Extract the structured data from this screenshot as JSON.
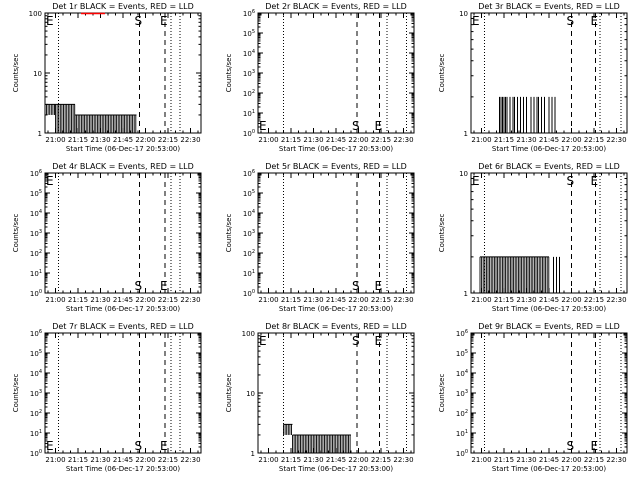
{
  "figure": {
    "xlabel": "Start Time (06-Dec-17 20:53:00)",
    "ylabel": "Counts/sec",
    "x_ticks": [
      "21:00",
      "21:15",
      "21:30",
      "21:45",
      "22:00",
      "22:15",
      "22:30"
    ],
    "colors": {
      "events": "#000000",
      "lld": "#ff0000"
    }
  },
  "chart_data": [
    {
      "type": "line",
      "title": "Det 1r BLACK = Events, RED = LLD",
      "xlabel": "Start Time (06-Dec-17 20:53:00)",
      "ylabel": "Counts/sec",
      "yscale": "log",
      "ylim": [
        1,
        100
      ],
      "y_ticks": [
        {
          "v": 1,
          "t": "1"
        },
        {
          "v": 10,
          "t": "10"
        },
        {
          "v": 100,
          "t": "100"
        }
      ],
      "xlim": [
        "20:53",
        "22:37"
      ],
      "markers": [
        {
          "label": "E",
          "time": "20:53",
          "style": "none",
          "at": "top"
        },
        {
          "label": "S",
          "time": "21:56",
          "style": "dashed",
          "at": "top"
        },
        {
          "label": "E",
          "time": "22:13",
          "style": "dashed",
          "at": "top"
        }
      ],
      "dotted": [
        "21:02",
        "22:17",
        "22:23"
      ],
      "series": [
        {
          "name": "BLACK = Events",
          "type": "burst",
          "segments": [
            {
              "start": "20:54",
              "end": "21:00",
              "hi": 3,
              "lo": 2
            },
            {
              "start": "21:00",
              "end": "21:13",
              "hi": 3,
              "lo": 1
            },
            {
              "start": "21:13",
              "end": "21:54",
              "hi": 2,
              "lo": 1
            }
          ]
        },
        {
          "name": "RED = LLD",
          "type": "flat",
          "start": "21:17",
          "end": "21:33",
          "y": 100
        }
      ]
    },
    {
      "type": "line",
      "title": "Det 2r BLACK = Events, RED = LLD",
      "xlabel": "Start Time (06-Dec-17 20:53:00)",
      "ylabel": "Counts/sec",
      "yscale": "log",
      "ylim": [
        1,
        1000000
      ],
      "y_ticks": [
        {
          "v": 1,
          "t": "10^0"
        },
        {
          "v": 10,
          "t": "10^1"
        },
        {
          "v": 100,
          "t": "10^2"
        },
        {
          "v": 1000,
          "t": "10^3"
        },
        {
          "v": 10000,
          "t": "10^4"
        },
        {
          "v": 100000,
          "t": "10^5"
        },
        {
          "v": 1000000,
          "t": "10^6"
        }
      ],
      "xlim": [
        "20:53",
        "22:37"
      ],
      "markers": [
        {
          "label": "E",
          "time": "20:53",
          "style": "none",
          "at": "bottom"
        },
        {
          "label": "S",
          "time": "21:59",
          "style": "dashed",
          "at": "bottom"
        },
        {
          "label": "E",
          "time": "22:14",
          "style": "dashed",
          "at": "bottom"
        }
      ],
      "dotted": [
        "21:10",
        "22:19",
        "22:32"
      ],
      "series": []
    },
    {
      "type": "line",
      "title": "Det 3r BLACK = Events, RED = LLD",
      "xlabel": "Start Time (06-Dec-17 20:53:00)",
      "ylabel": "Counts/sec",
      "yscale": "log",
      "ylim": [
        1,
        10
      ],
      "y_ticks": [
        {
          "v": 1,
          "t": "1"
        },
        {
          "v": 10,
          "t": "10"
        }
      ],
      "xlim": [
        "20:53",
        "22:37"
      ],
      "markers": [
        {
          "label": "E",
          "time": "20:53",
          "style": "none",
          "at": "top"
        },
        {
          "label": "S",
          "time": "22:00",
          "style": "dashed",
          "at": "top"
        },
        {
          "label": "E",
          "time": "22:16",
          "style": "dashed",
          "at": "top"
        }
      ],
      "dotted": [
        "21:02",
        "22:19",
        "22:33"
      ],
      "series": [
        {
          "name": "BLACK = Events",
          "type": "spikes",
          "base": 1,
          "y": 2,
          "times": [
            "21:12",
            "21:13",
            "21:14",
            "21:15",
            "21:16",
            "21:17",
            "21:19",
            "21:21",
            "21:22",
            "21:24",
            "21:26",
            "21:28",
            "21:30",
            "21:33",
            "21:35",
            "21:37",
            "21:38",
            "21:40",
            "21:42",
            "21:45",
            "21:47",
            "21:49"
          ]
        }
      ]
    },
    {
      "type": "line",
      "title": "Det 4r BLACK = Events, RED = LLD",
      "xlabel": "Start Time (06-Dec-17 20:53:00)",
      "ylabel": "Counts/sec",
      "yscale": "log",
      "ylim": [
        1,
        1000000
      ],
      "y_ticks": [
        {
          "v": 1,
          "t": "10^0"
        },
        {
          "v": 10,
          "t": "10^1"
        },
        {
          "v": 100,
          "t": "10^2"
        },
        {
          "v": 1000,
          "t": "10^3"
        },
        {
          "v": 10000,
          "t": "10^4"
        },
        {
          "v": 100000,
          "t": "10^5"
        },
        {
          "v": 1000000,
          "t": "10^6"
        }
      ],
      "xlim": [
        "20:53",
        "22:37"
      ],
      "markers": [
        {
          "label": "E",
          "time": "20:53",
          "style": "none",
          "at": "top"
        },
        {
          "label": "S",
          "time": "21:56",
          "style": "dashed",
          "at": "bottom"
        },
        {
          "label": "E",
          "time": "22:13",
          "style": "dashed",
          "at": "bottom"
        }
      ],
      "dotted": [
        "21:02",
        "22:17",
        "22:23"
      ],
      "series": []
    },
    {
      "type": "line",
      "title": "Det 5r BLACK = Events, RED = LLD",
      "xlabel": "Start Time (06-Dec-17 20:53:00)",
      "ylabel": "Counts/sec",
      "yscale": "log",
      "ylim": [
        1,
        1000000
      ],
      "y_ticks": [
        {
          "v": 1,
          "t": "10^0"
        },
        {
          "v": 10,
          "t": "10^1"
        },
        {
          "v": 100,
          "t": "10^2"
        },
        {
          "v": 1000,
          "t": "10^3"
        },
        {
          "v": 10000,
          "t": "10^4"
        },
        {
          "v": 100000,
          "t": "10^5"
        },
        {
          "v": 1000000,
          "t": "10^6"
        }
      ],
      "xlim": [
        "20:53",
        "22:37"
      ],
      "markers": [
        {
          "label": "S",
          "time": "21:59",
          "style": "dashed",
          "at": "bottom"
        },
        {
          "label": "E",
          "time": "22:14",
          "style": "dashed",
          "at": "bottom"
        }
      ],
      "dotted": [
        "21:10",
        "22:19",
        "22:32"
      ],
      "series": []
    },
    {
      "type": "line",
      "title": "Det 6r BLACK = Events, RED = LLD",
      "xlabel": "Start Time (06-Dec-17 20:53:00)",
      "ylabel": "Counts/sec",
      "yscale": "log",
      "ylim": [
        1,
        10
      ],
      "y_ticks": [
        {
          "v": 1,
          "t": "1"
        },
        {
          "v": 10,
          "t": "10"
        }
      ],
      "xlim": [
        "20:53",
        "22:37"
      ],
      "markers": [
        {
          "label": "E",
          "time": "20:53",
          "style": "none",
          "at": "top"
        },
        {
          "label": "S",
          "time": "22:00",
          "style": "dashed",
          "at": "top"
        },
        {
          "label": "E",
          "time": "22:16",
          "style": "dashed",
          "at": "top"
        }
      ],
      "dotted": [
        "21:02",
        "22:19",
        "22:33"
      ],
      "series": [
        {
          "name": "BLACK = Events",
          "type": "burst",
          "segments": [
            {
              "start": "20:59",
              "end": "21:45",
              "hi": 2,
              "lo": 1
            }
          ]
        },
        {
          "name": "BLACK = Events",
          "type": "spikes",
          "base": 1,
          "y": 2,
          "times": [
            "21:48",
            "21:50",
            "21:52"
          ]
        }
      ]
    },
    {
      "type": "line",
      "title": "Det 7r BLACK = Events, RED = LLD",
      "xlabel": "Start Time (06-Dec-17 20:53:00)",
      "ylabel": "Counts/sec",
      "yscale": "log",
      "ylim": [
        1,
        1000000
      ],
      "y_ticks": [
        {
          "v": 1,
          "t": "10^0"
        },
        {
          "v": 10,
          "t": "10^1"
        },
        {
          "v": 100,
          "t": "10^2"
        },
        {
          "v": 1000,
          "t": "10^3"
        },
        {
          "v": 10000,
          "t": "10^4"
        },
        {
          "v": 100000,
          "t": "10^5"
        },
        {
          "v": 1000000,
          "t": "10^6"
        }
      ],
      "xlim": [
        "20:53",
        "22:37"
      ],
      "markers": [
        {
          "label": "E",
          "time": "20:53",
          "style": "none",
          "at": "bottom"
        },
        {
          "label": "S",
          "time": "21:56",
          "style": "dashed",
          "at": "bottom"
        },
        {
          "label": "E",
          "time": "22:13",
          "style": "dashed",
          "at": "bottom"
        }
      ],
      "dotted": [
        "21:02",
        "22:17",
        "22:23"
      ],
      "series": []
    },
    {
      "type": "line",
      "title": "Det 8r BLACK = Events, RED = LLD",
      "xlabel": "Start Time (06-Dec-17 20:53:00)",
      "ylabel": "Counts/sec",
      "yscale": "log",
      "ylim": [
        1,
        100
      ],
      "y_ticks": [
        {
          "v": 1,
          "t": "1"
        },
        {
          "v": 10,
          "t": "10"
        },
        {
          "v": 100,
          "t": "100"
        }
      ],
      "xlim": [
        "20:53",
        "22:37"
      ],
      "markers": [
        {
          "label": "E",
          "time": "20:53",
          "style": "none",
          "at": "top"
        },
        {
          "label": "S",
          "time": "21:59",
          "style": "dashed",
          "at": "top"
        },
        {
          "label": "E",
          "time": "22:14",
          "style": "dashed",
          "at": "top"
        }
      ],
      "dotted": [
        "21:10",
        "22:19",
        "22:32"
      ],
      "series": [
        {
          "name": "BLACK = Events",
          "type": "burst",
          "segments": [
            {
              "start": "21:10",
              "end": "21:16",
              "hi": 3,
              "lo": 2
            },
            {
              "start": "21:16",
              "end": "21:55",
              "hi": 2,
              "lo": 1
            }
          ]
        }
      ]
    },
    {
      "type": "line",
      "title": "Det 9r BLACK = Events, RED = LLD",
      "xlabel": "Start Time (06-Dec-17 20:53:00)",
      "ylabel": "Counts/sec",
      "yscale": "log",
      "ylim": [
        1,
        1000000
      ],
      "y_ticks": [
        {
          "v": 1,
          "t": "10^0"
        },
        {
          "v": 10,
          "t": "10^1"
        },
        {
          "v": 100,
          "t": "10^2"
        },
        {
          "v": 1000,
          "t": "10^3"
        },
        {
          "v": 10000,
          "t": "10^4"
        },
        {
          "v": 100000,
          "t": "10^5"
        },
        {
          "v": 1000000,
          "t": "10^6"
        }
      ],
      "xlim": [
        "20:53",
        "22:37"
      ],
      "markers": [
        {
          "label": "S",
          "time": "22:00",
          "style": "dashed",
          "at": "bottom"
        },
        {
          "label": "E",
          "time": "22:16",
          "style": "dashed",
          "at": "bottom"
        }
      ],
      "dotted": [
        "21:02",
        "22:19",
        "22:33"
      ],
      "series": []
    }
  ]
}
